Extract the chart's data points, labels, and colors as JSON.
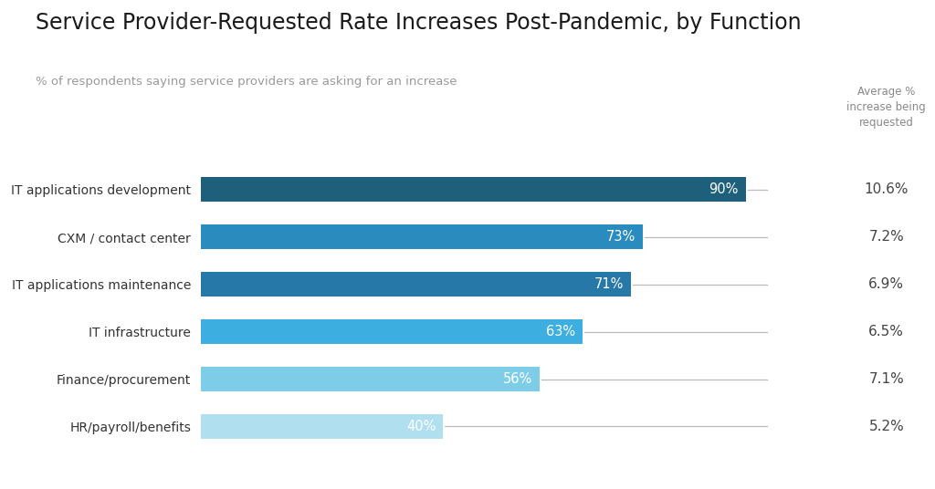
{
  "title": "Service Provider-Requested Rate Increases Post-Pandemic, by Function",
  "subtitle": "% of respondents saying service providers are asking for an increase",
  "right_label": "Average %\nincrease being\nrequested",
  "categories": [
    "IT applications development",
    "CXM / contact center",
    "IT applications maintenance",
    "IT infrastructure",
    "Finance/procurement",
    "HR/payroll/benefits"
  ],
  "values": [
    90,
    73,
    71,
    63,
    56,
    40
  ],
  "bar_labels": [
    "90%",
    "73%",
    "71%",
    "63%",
    "56%",
    "40%"
  ],
  "avg_increases": [
    "10.6%",
    "7.2%",
    "6.9%",
    "6.5%",
    "7.1%",
    "5.2%"
  ],
  "bar_colors": [
    "#1e607c",
    "#2a8bbf",
    "#2578a8",
    "#3daee0",
    "#7dcde8",
    "#b0dff0"
  ],
  "bar_label_color": "#ffffff",
  "background_color": "#ffffff",
  "title_fontsize": 17,
  "subtitle_fontsize": 9.5,
  "bar_height": 0.52,
  "line_color": "#bbbbbb",
  "avg_color": "#444444",
  "right_label_color": "#888888",
  "category_fontsize": 10,
  "avg_fontsize": 11
}
